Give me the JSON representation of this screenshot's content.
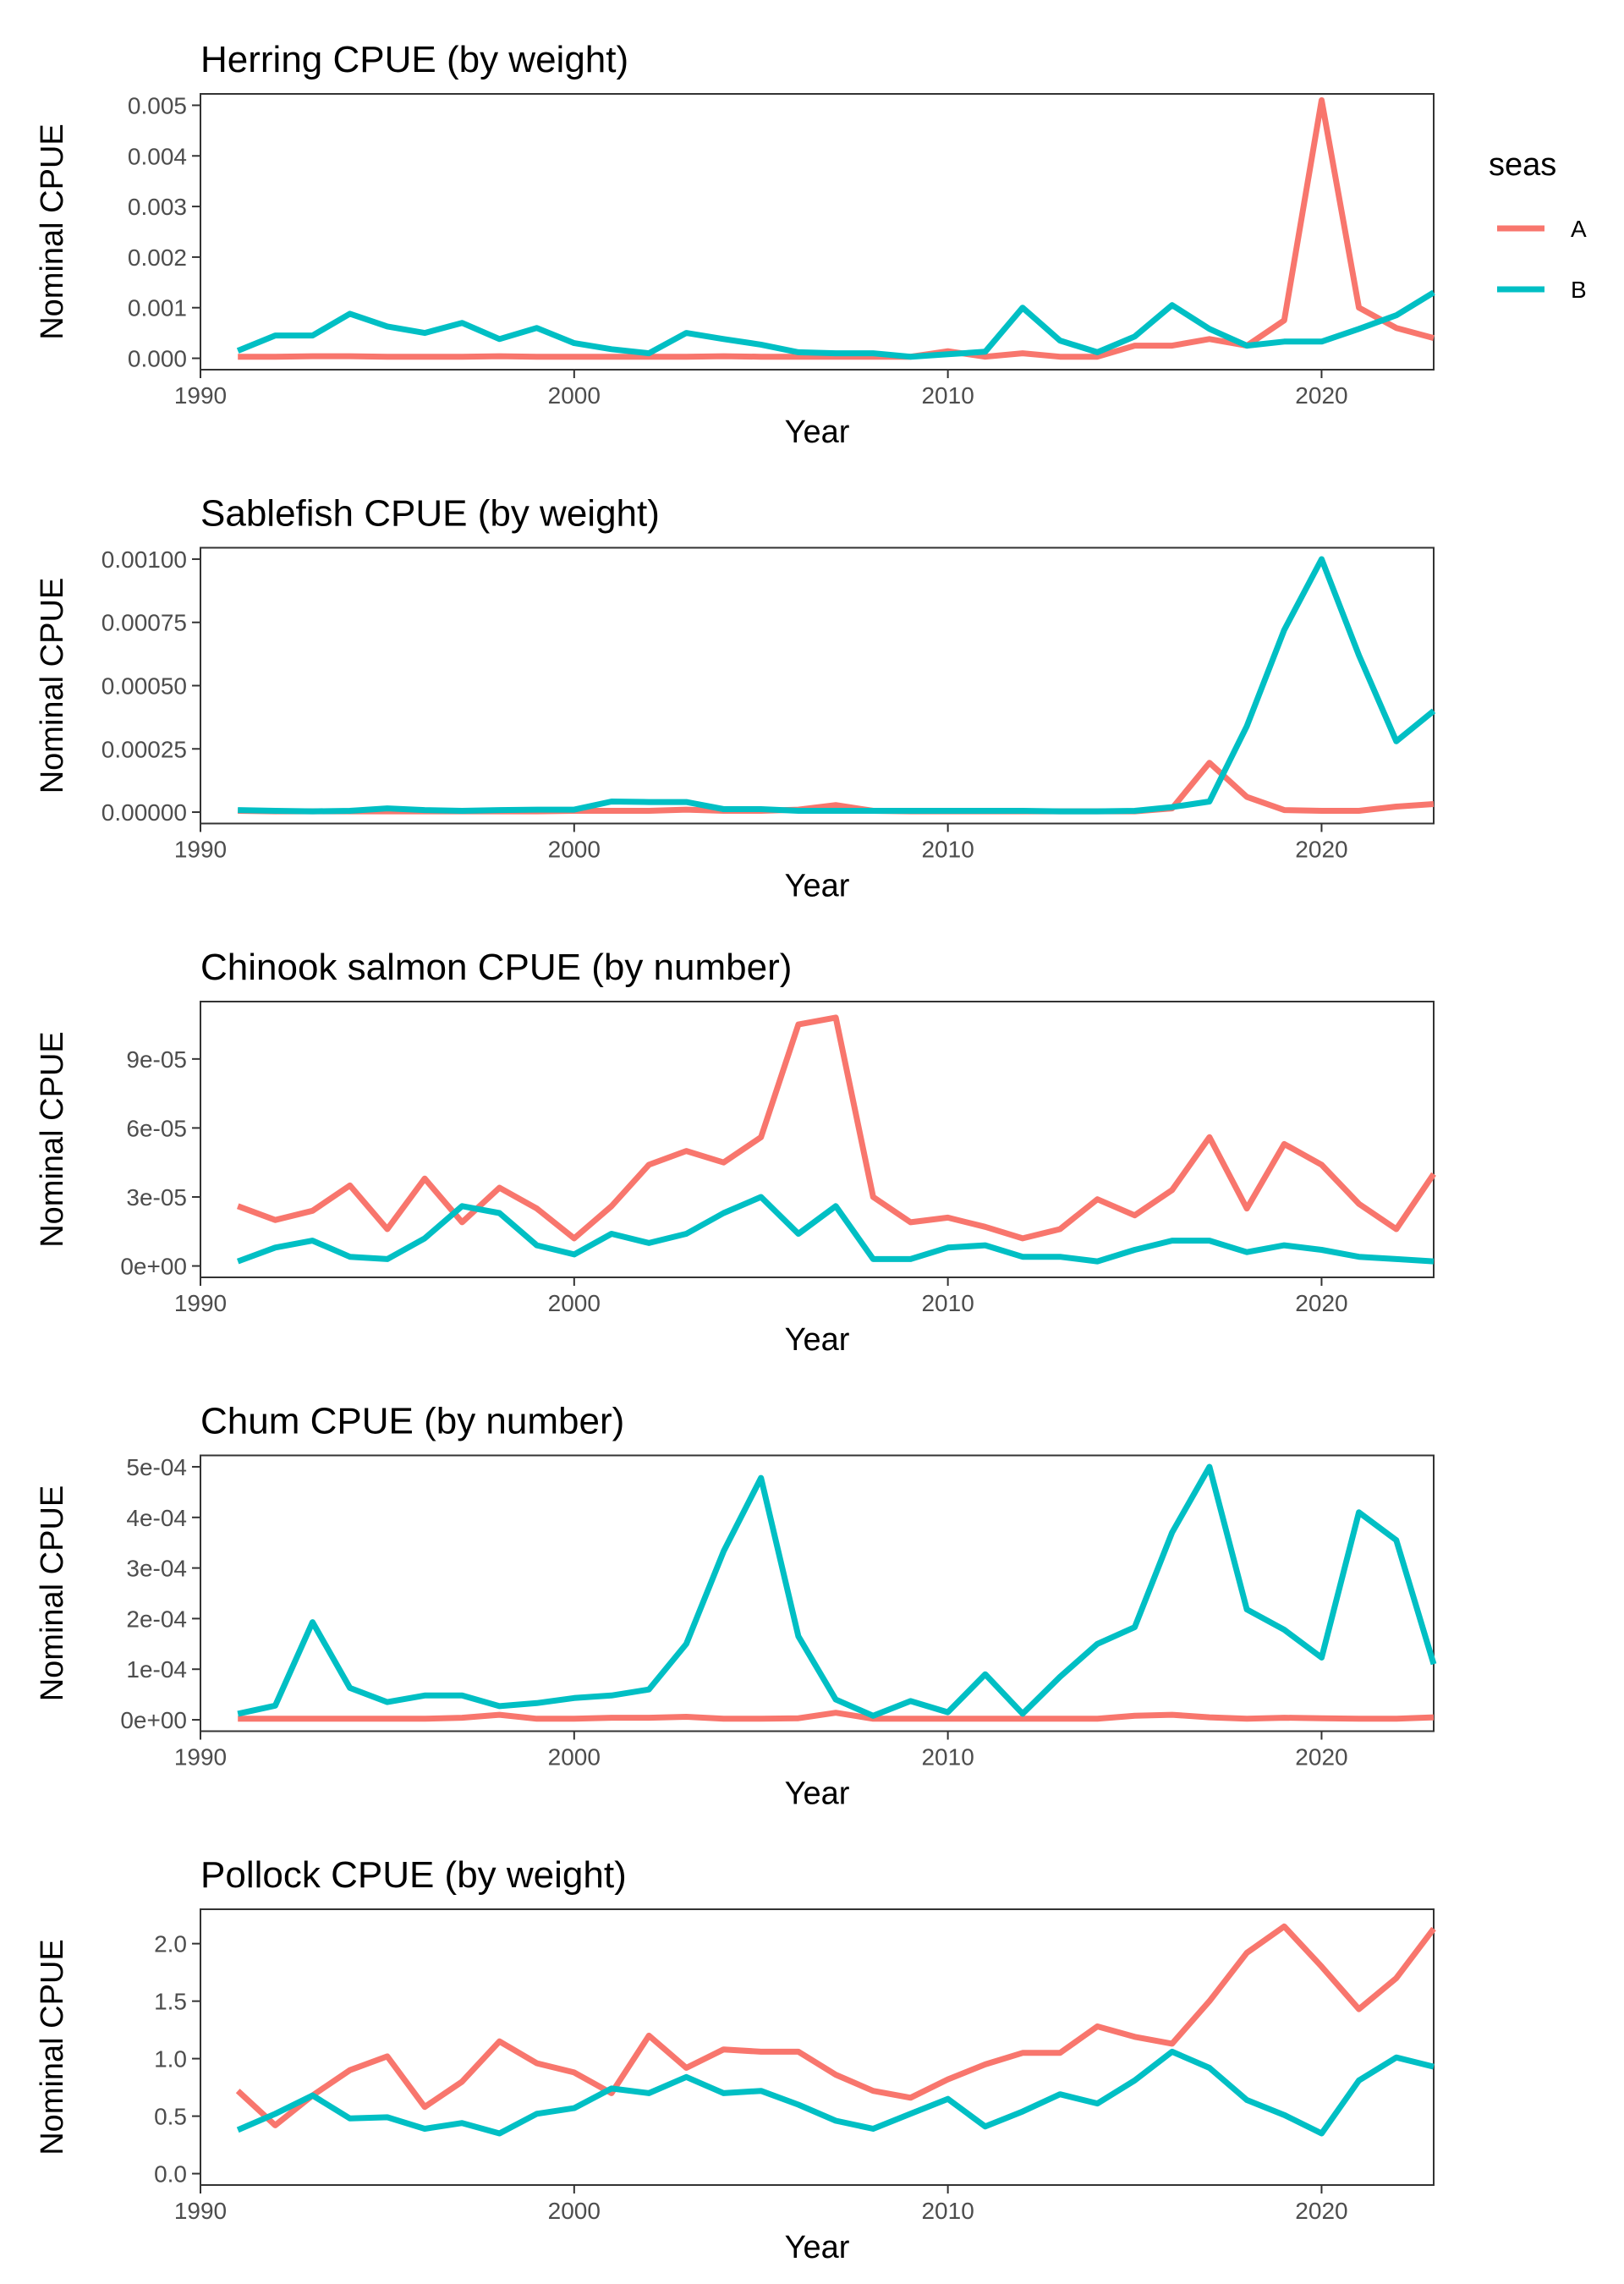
{
  "legend": {
    "title": "seas",
    "position": "right",
    "entries": [
      {
        "label": "A",
        "color": "#F8766D"
      },
      {
        "label": "B",
        "color": "#00BFC4"
      }
    ]
  },
  "chart_data": [
    {
      "type": "line",
      "title": "Herring CPUE (by weight)",
      "xlabel": "Year",
      "ylabel": "Nominal CPUE",
      "xlim": [
        1990,
        2023
      ],
      "ylim": [
        0,
        0.005
      ],
      "x_ticks": [
        1990,
        2000,
        2010,
        2020
      ],
      "y_ticks": [
        0,
        0.001,
        0.002,
        0.003,
        0.004,
        0.005
      ],
      "y_tick_labels": [
        "0.000",
        "0.001",
        "0.002",
        "0.003",
        "0.004",
        "0.005"
      ],
      "grid": false,
      "x": [
        1991,
        1992,
        1993,
        1994,
        1995,
        1996,
        1997,
        1998,
        1999,
        2000,
        2001,
        2002,
        2003,
        2004,
        2005,
        2006,
        2007,
        2008,
        2009,
        2010,
        2011,
        2012,
        2013,
        2014,
        2015,
        2016,
        2017,
        2018,
        2019,
        2020,
        2021,
        2022,
        2023
      ],
      "series": [
        {
          "name": "A",
          "color": "#F8766D",
          "values": [
            3e-05,
            3e-05,
            4e-05,
            4e-05,
            3e-05,
            3e-05,
            3e-05,
            4e-05,
            3e-05,
            3e-05,
            3e-05,
            3e-05,
            3e-05,
            4e-05,
            3e-05,
            3e-05,
            3e-05,
            3e-05,
            3e-05,
            0.00014,
            3e-05,
            0.0001,
            3e-05,
            3e-05,
            0.00025,
            0.00025,
            0.00038,
            0.00025,
            0.00075,
            0.0051,
            0.001,
            0.0006,
            0.0004
          ]
        },
        {
          "name": "B",
          "color": "#00BFC4",
          "values": [
            0.00015,
            0.00045,
            0.00045,
            0.00088,
            0.00063,
            0.0005,
            0.0007,
            0.00038,
            0.0006,
            0.0003,
            0.00018,
            0.0001,
            0.0005,
            0.00038,
            0.00027,
            0.00012,
            0.0001,
            0.0001,
            3e-05,
            8e-05,
            0.00013,
            0.001,
            0.00035,
            0.00012,
            0.00043,
            0.00105,
            0.00058,
            0.00025,
            0.00033,
            0.00033,
            0.00058,
            0.00085,
            0.0013
          ]
        }
      ]
    },
    {
      "type": "line",
      "title": "Sablefish CPUE (by weight)",
      "xlabel": "Year",
      "ylabel": "Nominal CPUE",
      "xlim": [
        1990,
        2023
      ],
      "ylim": [
        0,
        0.001
      ],
      "x_ticks": [
        1990,
        2000,
        2010,
        2020
      ],
      "y_ticks": [
        0,
        0.00025,
        0.0005,
        0.00075,
        0.001
      ],
      "y_tick_labels": [
        "0.00000",
        "0.00025",
        "0.00050",
        "0.00075",
        "0.00100"
      ],
      "grid": false,
      "x": [
        1991,
        1992,
        1993,
        1994,
        1995,
        1996,
        1997,
        1998,
        1999,
        2000,
        2001,
        2002,
        2003,
        2004,
        2005,
        2006,
        2007,
        2008,
        2009,
        2010,
        2011,
        2012,
        2013,
        2014,
        2015,
        2016,
        2017,
        2018,
        2019,
        2020,
        2021,
        2022,
        2023
      ],
      "series": [
        {
          "name": "A",
          "color": "#F8766D",
          "values": [
            5e-06,
            3e-06,
            3e-06,
            3e-06,
            3e-06,
            3e-06,
            3e-06,
            3e-06,
            3e-06,
            5e-06,
            5e-06,
            5e-06,
            1e-05,
            5e-06,
            5e-06,
            1e-05,
            2.8e-05,
            5e-06,
            3e-06,
            3e-06,
            3e-06,
            3e-06,
            3e-06,
            3e-06,
            3e-06,
            1.5e-05,
            0.000195,
            6e-05,
            8e-06,
            5e-06,
            5e-06,
            2.2e-05,
            3.2e-05
          ]
        },
        {
          "name": "B",
          "color": "#00BFC4",
          "values": [
            8e-06,
            5e-06,
            3e-06,
            5e-06,
            1.5e-05,
            8e-06,
            5e-06,
            8e-06,
            1e-05,
            1e-05,
            4.2e-05,
            4e-05,
            4e-05,
            1.2e-05,
            1.2e-05,
            5e-06,
            5e-06,
            5e-06,
            5e-06,
            5e-06,
            5e-06,
            5e-06,
            3e-06,
            3e-06,
            5e-06,
            2e-05,
            4.2e-05,
            0.00034,
            0.00072,
            0.001,
            0.00062,
            0.00028,
            0.0004
          ]
        }
      ]
    },
    {
      "type": "line",
      "title": "Chinook salmon CPUE (by number)",
      "xlabel": "Year",
      "ylabel": "Nominal CPUE",
      "xlim": [
        1990,
        2023
      ],
      "ylim": [
        0,
        0.00011
      ],
      "x_ticks": [
        1990,
        2000,
        2010,
        2020
      ],
      "y_ticks": [
        0,
        3e-05,
        6e-05,
        9e-05
      ],
      "y_tick_labels": [
        "0e+00",
        "3e-05",
        "6e-05",
        "9e-05"
      ],
      "grid": false,
      "x": [
        1991,
        1992,
        1993,
        1994,
        1995,
        1996,
        1997,
        1998,
        1999,
        2000,
        2001,
        2002,
        2003,
        2004,
        2005,
        2006,
        2007,
        2008,
        2009,
        2010,
        2011,
        2012,
        2013,
        2014,
        2015,
        2016,
        2017,
        2018,
        2019,
        2020,
        2021,
        2022,
        2023
      ],
      "series": [
        {
          "name": "A",
          "color": "#F8766D",
          "values": [
            2.6e-05,
            2e-05,
            2.4e-05,
            3.5e-05,
            1.6e-05,
            3.8e-05,
            1.9e-05,
            3.4e-05,
            2.5e-05,
            1.2e-05,
            2.6e-05,
            4.4e-05,
            5e-05,
            4.5e-05,
            5.6e-05,
            0.000105,
            0.000108,
            3e-05,
            1.9e-05,
            2.1e-05,
            1.7e-05,
            1.2e-05,
            1.6e-05,
            2.9e-05,
            2.2e-05,
            3.3e-05,
            5.6e-05,
            2.5e-05,
            5.3e-05,
            4.4e-05,
            2.7e-05,
            1.6e-05,
            4e-05
          ]
        },
        {
          "name": "B",
          "color": "#00BFC4",
          "values": [
            2e-06,
            8e-06,
            1.1e-05,
            4e-06,
            3e-06,
            1.2e-05,
            2.6e-05,
            2.3e-05,
            9e-06,
            5e-06,
            1.4e-05,
            1e-05,
            1.4e-05,
            2.3e-05,
            3e-05,
            1.4e-05,
            2.6e-05,
            3e-06,
            3e-06,
            8e-06,
            9e-06,
            4e-06,
            4e-06,
            2e-06,
            7e-06,
            1.1e-05,
            1.1e-05,
            6e-06,
            9e-06,
            7e-06,
            4e-06,
            3e-06,
            2e-06
          ]
        }
      ]
    },
    {
      "type": "line",
      "title": "Chum CPUE (by number)",
      "xlabel": "Year",
      "ylabel": "Nominal CPUE",
      "xlim": [
        1990,
        2023
      ],
      "ylim": [
        0,
        0.0005
      ],
      "x_ticks": [
        1990,
        2000,
        2010,
        2020
      ],
      "y_ticks": [
        0,
        0.0001,
        0.0002,
        0.0003,
        0.0004,
        0.0005
      ],
      "y_tick_labels": [
        "0e+00",
        "1e-04",
        "2e-04",
        "3e-04",
        "4e-04",
        "5e-04"
      ],
      "grid": false,
      "x": [
        1991,
        1992,
        1993,
        1994,
        1995,
        1996,
        1997,
        1998,
        1999,
        2000,
        2001,
        2002,
        2003,
        2004,
        2005,
        2006,
        2007,
        2008,
        2009,
        2010,
        2011,
        2012,
        2013,
        2014,
        2015,
        2016,
        2017,
        2018,
        2019,
        2020,
        2021,
        2022,
        2023
      ],
      "series": [
        {
          "name": "A",
          "color": "#F8766D",
          "values": [
            2e-06,
            2e-06,
            2e-06,
            2e-06,
            2e-06,
            2e-06,
            4e-06,
            1e-05,
            2e-06,
            2e-06,
            4e-06,
            4e-06,
            6e-06,
            2e-06,
            2e-06,
            3e-06,
            1.4e-05,
            2e-06,
            2e-06,
            2e-06,
            2e-06,
            2e-06,
            2e-06,
            2e-06,
            8e-06,
            1e-05,
            5e-06,
            2e-06,
            4e-06,
            3e-06,
            2e-06,
            2e-06,
            5e-06
          ]
        },
        {
          "name": "B",
          "color": "#00BFC4",
          "values": [
            1.2e-05,
            2.8e-05,
            0.000193,
            6.3e-05,
            3.5e-05,
            4.8e-05,
            4.8e-05,
            2.7e-05,
            3.3e-05,
            4.3e-05,
            4.8e-05,
            6e-05,
            0.00015,
            0.000333,
            0.000478,
            0.000165,
            4e-05,
            8e-06,
            3.7e-05,
            1.5e-05,
            9e-05,
            1.2e-05,
            8.5e-05,
            0.00015,
            0.000183,
            0.00037,
            0.0005,
            0.000218,
            0.000178,
            0.000123,
            0.00041,
            0.000355,
            0.00011
          ]
        }
      ]
    },
    {
      "type": "line",
      "title": "Pollock CPUE (by weight)",
      "xlabel": "Year",
      "ylabel": "Nominal CPUE",
      "xlim": [
        1990,
        2023
      ],
      "ylim": [
        0,
        2.2
      ],
      "x_ticks": [
        1990,
        2000,
        2010,
        2020
      ],
      "y_ticks": [
        0,
        0.5,
        1.0,
        1.5,
        2.0
      ],
      "y_tick_labels": [
        "0.0",
        "0.5",
        "1.0",
        "1.5",
        "2.0"
      ],
      "grid": false,
      "x": [
        1991,
        1992,
        1993,
        1994,
        1995,
        1996,
        1997,
        1998,
        1999,
        2000,
        2001,
        2002,
        2003,
        2004,
        2005,
        2006,
        2007,
        2008,
        2009,
        2010,
        2011,
        2012,
        2013,
        2014,
        2015,
        2016,
        2017,
        2018,
        2019,
        2020,
        2021,
        2022,
        2023
      ],
      "series": [
        {
          "name": "A",
          "color": "#F8766D",
          "values": [
            0.72,
            0.42,
            0.68,
            0.9,
            1.02,
            0.58,
            0.8,
            1.15,
            0.96,
            0.88,
            0.7,
            1.2,
            0.92,
            1.08,
            1.06,
            1.06,
            0.86,
            0.72,
            0.66,
            0.82,
            0.95,
            1.05,
            1.05,
            1.28,
            1.19,
            1.13,
            1.5,
            1.92,
            2.15,
            1.8,
            1.43,
            1.7,
            2.13
          ]
        },
        {
          "name": "B",
          "color": "#00BFC4",
          "values": [
            0.38,
            0.52,
            0.68,
            0.48,
            0.49,
            0.39,
            0.44,
            0.35,
            0.52,
            0.57,
            0.74,
            0.7,
            0.84,
            0.7,
            0.72,
            0.6,
            0.46,
            0.39,
            0.52,
            0.65,
            0.41,
            0.54,
            0.69,
            0.61,
            0.81,
            1.06,
            0.92,
            0.64,
            0.51,
            0.35,
            0.81,
            1.01,
            0.93
          ]
        }
      ]
    }
  ]
}
